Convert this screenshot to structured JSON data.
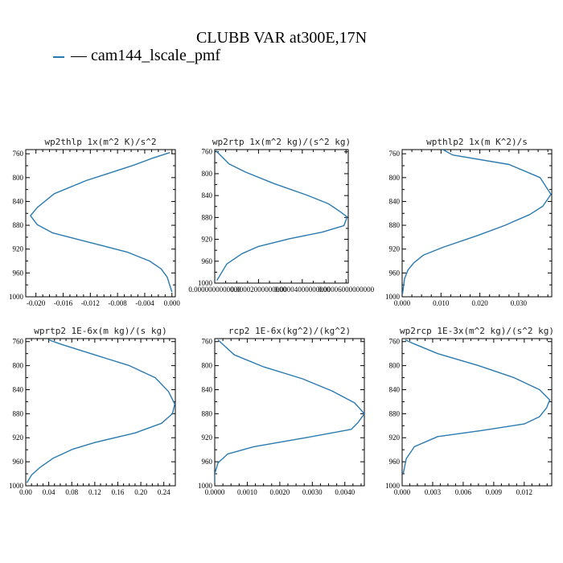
{
  "title": "CLUBB VAR at300E,17N",
  "legend": {
    "label": "— cam144_lscale_pmf",
    "color": "#2a7ab0"
  },
  "chart_data": [
    {
      "type": "line",
      "title": "wp2thlp  1x(m^2 K)/s^2",
      "xlim": [
        -0.0215,
        0.0005
      ],
      "ylim": [
        1000,
        753
      ],
      "y_ticks": [
        760,
        800,
        840,
        880,
        920,
        960,
        1000
      ],
      "x_ticks": [
        -0.02,
        -0.016,
        -0.012,
        -0.008,
        -0.004,
        0.0
      ],
      "x_tick_labels": [
        "-0.020",
        "-0.016",
        "-0.012",
        "-0.008",
        "-0.004",
        "0.000"
      ],
      "series": [
        {
          "color": "#2a7ab0",
          "x": [
            -0.0003,
            -0.003,
            -0.0056,
            -0.0126,
            -0.0173,
            -0.0198,
            -0.0208,
            -0.0198,
            -0.0175,
            -0.011,
            -0.0066,
            -0.0033,
            -0.0016,
            -0.0007,
            0.0
          ],
          "y": [
            758,
            768,
            779,
            805,
            827,
            850,
            864,
            879,
            893,
            912,
            925,
            940,
            953,
            967,
            992
          ]
        }
      ]
    },
    {
      "type": "line",
      "title": "wp2rtp  1x(m^2 kg)/(s^2 kg)",
      "xlim": [
        0.0,
        6.1e-05
      ],
      "ylim": [
        1000,
        756
      ],
      "y_ticks": [
        760,
        800,
        840,
        880,
        920,
        960,
        1000
      ],
      "x_ticks": [
        0.0,
        2e-05,
        4e-05,
        6e-05
      ],
      "x_tick_labels": [
        "0.0000000000000",
        "0.00002000000000",
        "0.00004000000000",
        "0.00006000000000"
      ],
      "series": [
        {
          "color": "#2a7ab0",
          "x": [
            5e-07,
            2.5e-06,
            6.5e-06,
            1.4e-05,
            2.7e-05,
            4.2e-05,
            5.2e-05,
            5.75e-05,
            6.05e-05,
            5.9e-05,
            4.9e-05,
            3.4e-05,
            2e-05,
            1.25e-05,
            5.5e-06,
            1e-06
          ],
          "y": [
            758,
            766,
            782,
            797,
            818,
            839,
            855,
            870,
            879,
            895,
            907,
            919,
            933,
            946,
            965,
            995
          ]
        }
      ]
    },
    {
      "type": "line",
      "title": "wpthlp2  1x(m K^2)/s",
      "xlim": [
        0.0,
        0.0385
      ],
      "ylim": [
        1000,
        753
      ],
      "y_ticks": [
        760,
        800,
        840,
        880,
        920,
        960,
        1000
      ],
      "x_ticks": [
        0.0,
        0.01,
        0.02,
        0.03
      ],
      "x_tick_labels": [
        "0.000",
        "0.010",
        "0.020",
        "0.030"
      ],
      "series": [
        {
          "color": "#2a7ab0",
          "x": [
            0.0105,
            0.013,
            0.0275,
            0.0355,
            0.0383,
            0.0362,
            0.0328,
            0.0265,
            0.0195,
            0.0105,
            0.0055,
            0.003,
            0.0015,
            0.0006,
            0.0001
          ],
          "y": [
            753,
            762,
            778,
            800,
            828,
            848,
            862,
            880,
            897,
            917,
            930,
            943,
            955,
            970,
            995
          ]
        }
      ]
    },
    {
      "type": "line",
      "title": "wprtp2  1E-6x(m kg)/(s kg)",
      "xlim": [
        0.0,
        0.26
      ],
      "ylim": [
        1000,
        755
      ],
      "y_ticks": [
        760,
        800,
        840,
        880,
        920,
        960,
        1000
      ],
      "x_ticks": [
        0.0,
        0.04,
        0.08,
        0.12,
        0.16,
        0.2,
        0.24
      ],
      "x_tick_labels": [
        "0.00",
        "0.04",
        "0.08",
        "0.12",
        "0.16",
        "0.20",
        "0.24"
      ],
      "series": [
        {
          "color": "#2a7ab0",
          "x": [
            0.04,
            0.06,
            0.12,
            0.18,
            0.225,
            0.248,
            0.259,
            0.255,
            0.236,
            0.19,
            0.12,
            0.082,
            0.048,
            0.024,
            0.01,
            0.002
          ],
          "y": [
            757,
            764,
            782,
            800,
            820,
            843,
            864,
            880,
            896,
            912,
            928,
            939,
            954,
            970,
            982,
            995
          ]
        }
      ]
    },
    {
      "type": "line",
      "title": "rcp2  1E-6x(kg^2)/(kg^2)",
      "xlim": [
        0.0,
        0.0046
      ],
      "ylim": [
        1000,
        755
      ],
      "y_ticks": [
        760,
        800,
        840,
        880,
        920,
        960,
        1000
      ],
      "x_ticks": [
        0.0,
        0.001,
        0.002,
        0.003,
        0.004
      ],
      "x_tick_labels": [
        "0.0000",
        "0.0010",
        "0.0020",
        "0.0030",
        "0.0040"
      ],
      "series": [
        {
          "color": "#2a7ab0",
          "x": [
            0.0001,
            0.0003,
            0.0006,
            0.0015,
            0.0027,
            0.0036,
            0.0043,
            0.0046,
            0.0044,
            0.0042,
            0.0028,
            0.0012,
            0.0004,
            0.0001,
            0.0,
            0.0
          ],
          "y": [
            757,
            767,
            782,
            802,
            822,
            842,
            862,
            880,
            895,
            906,
            920,
            935,
            947,
            962,
            980,
            995
          ]
        }
      ]
    },
    {
      "type": "line",
      "title": "wp2rcp  1E-3x(m^2 kg)/(s^2 kg)",
      "xlim": [
        0.0,
        0.0147
      ],
      "ylim": [
        1000,
        755
      ],
      "y_ticks": [
        760,
        800,
        840,
        880,
        920,
        960,
        1000
      ],
      "x_ticks": [
        0.0,
        0.003,
        0.006,
        0.009,
        0.012
      ],
      "x_tick_labels": [
        "0.000",
        "0.003",
        "0.006",
        "0.009",
        "0.012"
      ],
      "series": [
        {
          "color": "#2a7ab0",
          "x": [
            0.0003,
            0.0012,
            0.0035,
            0.0075,
            0.011,
            0.0135,
            0.0145,
            0.0142,
            0.0135,
            0.012,
            0.0078,
            0.0035,
            0.0012,
            0.0004,
            0.0001
          ],
          "y": [
            757,
            764,
            780,
            800,
            820,
            840,
            857,
            870,
            885,
            897,
            908,
            918,
            935,
            955,
            980
          ]
        }
      ]
    }
  ]
}
